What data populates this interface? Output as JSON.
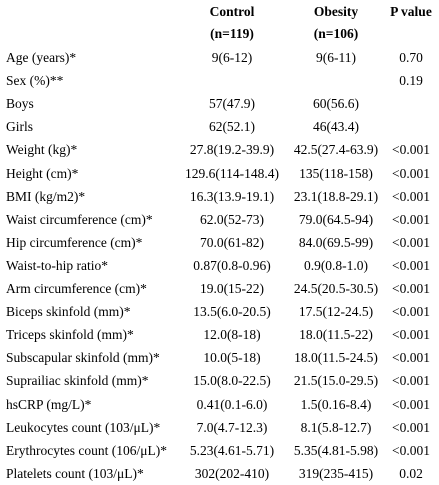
{
  "table": {
    "header": {
      "control": "Control",
      "control_n": "(n=119)",
      "obesity": "Obesity",
      "obesity_n": "(n=106)",
      "pvalue": "P value"
    },
    "rows": [
      {
        "label": "Age (years)*",
        "control": "9(6-12)",
        "obesity": "9(6-11)",
        "p": "0.70"
      },
      {
        "label": "Sex (%)**",
        "control": "",
        "obesity": "",
        "p": "0.19"
      },
      {
        "label": "Boys",
        "control": "57(47.9)",
        "obesity": "60(56.6)",
        "p": ""
      },
      {
        "label": "Girls",
        "control": "62(52.1)",
        "obesity": "46(43.4)",
        "p": ""
      },
      {
        "label": "Weight (kg)*",
        "control": "27.8(19.2-39.9)",
        "obesity": "42.5(27.4-63.9)",
        "p": "<0.001"
      },
      {
        "label": "Height (cm)*",
        "control": "129.6(114-148.4)",
        "obesity": "135(118-158)",
        "p": "<0.001"
      },
      {
        "label": "BMI (kg/m2)*",
        "control": "16.3(13.9-19.1)",
        "obesity": "23.1(18.8-29.1)",
        "p": "<0.001"
      },
      {
        "label": "Waist circumference (cm)*",
        "control": "62.0(52-73)",
        "obesity": "79.0(64.5-94)",
        "p": "<0.001"
      },
      {
        "label": "Hip circumference (cm)*",
        "control": "70.0(61-82)",
        "obesity": "84.0(69.5-99)",
        "p": "<0.001"
      },
      {
        "label": "Waist-to-hip ratio*",
        "control": "0.87(0.8-0.96)",
        "obesity": "0.9(0.8-1.0)",
        "p": "<0.001"
      },
      {
        "label": "Arm circumference (cm)*",
        "control": "19.0(15-22)",
        "obesity": "24.5(20.5-30.5)",
        "p": "<0.001"
      },
      {
        "label": "Biceps skinfold (mm)*",
        "control": "13.5(6.0-20.5)",
        "obesity": "17.5(12-24.5)",
        "p": "<0.001"
      },
      {
        "label": "Triceps skinfold (mm)*",
        "control": "12.0(8-18)",
        "obesity": "18.0(11.5-22)",
        "p": "<0.001"
      },
      {
        "label": "Subscapular skinfold (mm)*",
        "control": "10.0(5-18)",
        "obesity": "18.0(11.5-24.5)",
        "p": "<0.001"
      },
      {
        "label": "Suprailiac skinfold (mm)*",
        "control": "15.0(8.0-22.5)",
        "obesity": "21.5(15.0-29.5)",
        "p": "<0.001"
      },
      {
        "label": "hsCRP (mg/L)*",
        "control": "0.41(0.1-6.0)",
        "obesity": "1.5(0.16-8.4)",
        "p": "<0.001"
      },
      {
        "label": "Leukocytes count (103/μL)*",
        "control": "7.0(4.7-12.3)",
        "obesity": "8.1(5.8-12.7)",
        "p": "<0.001"
      },
      {
        "label": "Erythrocytes count (106/μL)*",
        "control": "5.23(4.61-5.71)",
        "obesity": "5.35(4.81-5.98)",
        "p": "<0.001"
      },
      {
        "label": "Platelets count (103/μL)*",
        "control": "302(202-410)",
        "obesity": "319(235-415)",
        "p": "0.02"
      }
    ]
  }
}
